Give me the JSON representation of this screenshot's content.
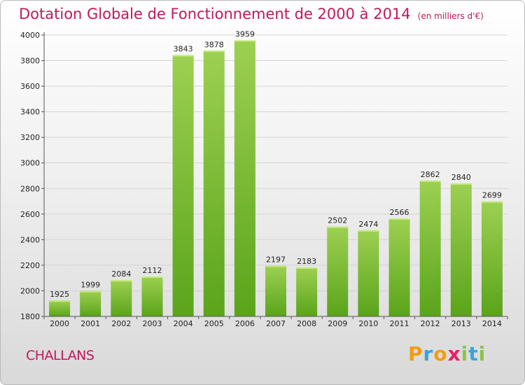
{
  "header": {
    "title": "Dotation Globale de Fonctionnement de 2000 à 2014",
    "subtitle": "(en milliers d'€)"
  },
  "footer": {
    "city": "CHALLANS",
    "logo_letters": [
      "P",
      "r",
      "o",
      "x",
      "i",
      "t",
      "i"
    ]
  },
  "colors": {
    "title": "#c2185b",
    "bar_top": "#9dd052",
    "bar_bottom": "#5aa41a",
    "logo": [
      "#f39c12",
      "#3aa3dd",
      "#f39c12",
      "#e91e63",
      "#8bc34a",
      "#3aa3dd",
      "#8bc34a"
    ]
  },
  "chart_data": {
    "type": "bar",
    "title": "Dotation Globale de Fonctionnement de 2000 à 2014",
    "subtitle": "(en milliers d'€)",
    "xlabel": "",
    "ylabel": "",
    "categories": [
      "2000",
      "2001",
      "2002",
      "2003",
      "2004",
      "2005",
      "2006",
      "2007",
      "2008",
      "2009",
      "2010",
      "2011",
      "2012",
      "2013",
      "2014"
    ],
    "values": [
      1925,
      1999,
      2084,
      2112,
      3843,
      3878,
      3959,
      2197,
      2183,
      2502,
      2474,
      2566,
      2862,
      2840,
      2699
    ],
    "ylim": [
      1800,
      4000
    ],
    "yticks": [
      1800,
      2000,
      2200,
      2400,
      2600,
      2800,
      3000,
      3200,
      3400,
      3600,
      3800,
      4000
    ],
    "grid": true,
    "legend": "none"
  }
}
